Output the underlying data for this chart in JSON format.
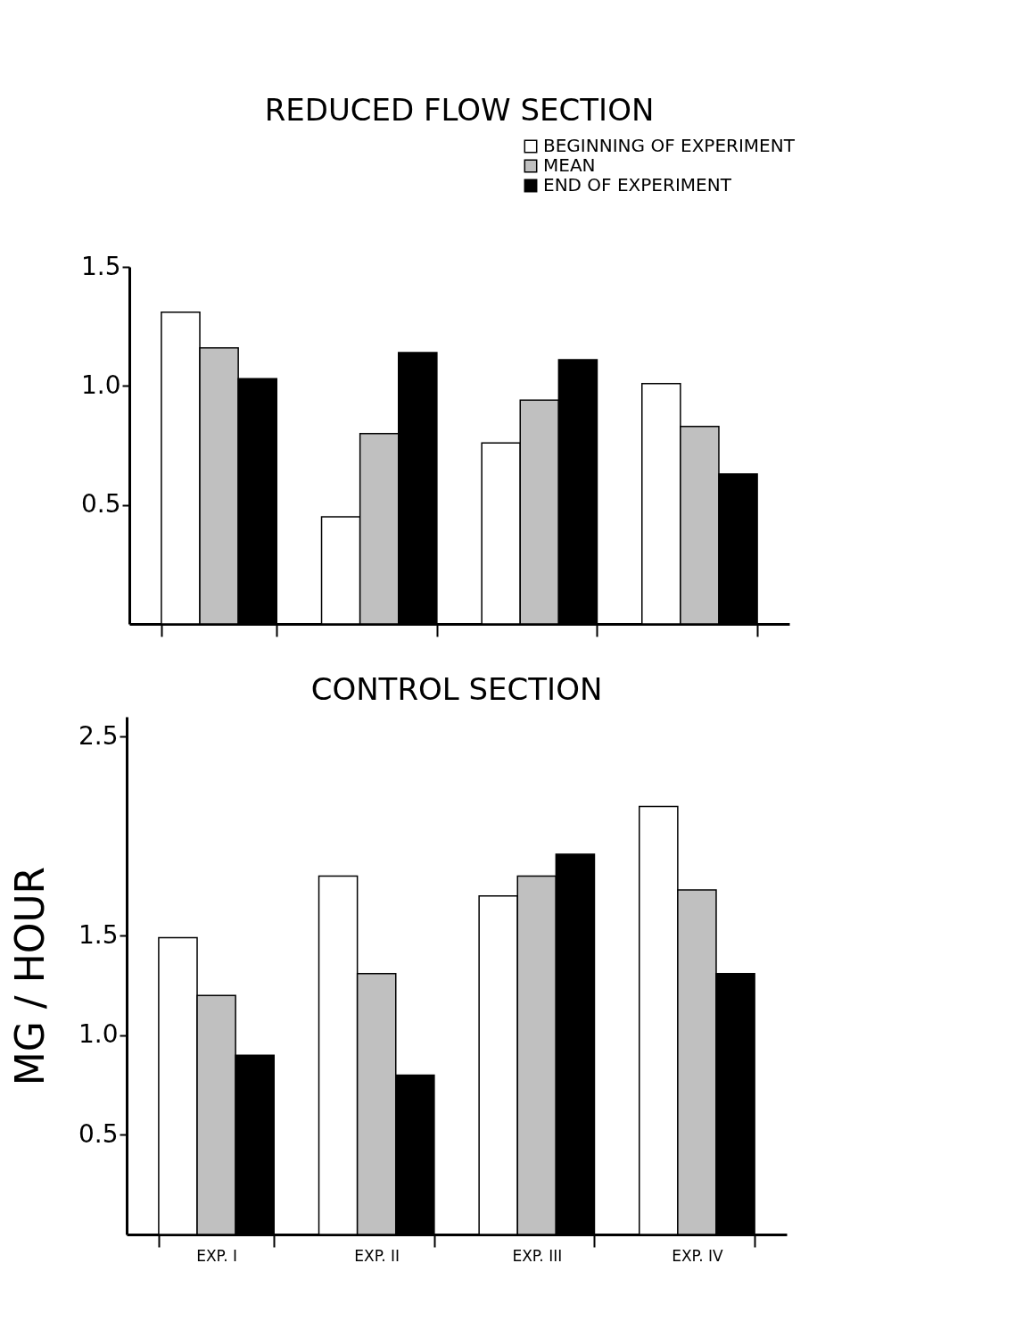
{
  "chart_data": [
    {
      "type": "bar",
      "title": "REDUCED FLOW SECTION",
      "categories": [
        null,
        null,
        null,
        null
      ],
      "series": [
        {
          "name": "BEGINNING OF EXPERIMENT",
          "color": "#ffffff",
          "values": [
            1.31,
            0.45,
            0.76,
            1.01
          ]
        },
        {
          "name": "MEAN",
          "color": "#c0c0c0",
          "values": [
            1.16,
            0.8,
            0.94,
            0.83
          ]
        },
        {
          "name": "END OF EXPERIMENT",
          "color": "#000000",
          "values": [
            1.03,
            1.14,
            1.11,
            0.63
          ]
        }
      ],
      "ylim": [
        0,
        1.5
      ],
      "yticks": [
        0.5,
        {
          "value": 1.0,
          "label": "1.0"
        },
        1.5
      ],
      "grid": false,
      "legend": "top right"
    },
    {
      "type": "bar",
      "title": "CONTROL SECTION",
      "ylabel": "MG / HOUR",
      "categories": [
        "EXP. I",
        "EXP. II",
        "EXP. III",
        "EXP. IV"
      ],
      "series": [
        {
          "color": "#ffffff",
          "values": [
            1.49,
            1.8,
            1.7,
            2.15
          ]
        },
        {
          "color": "#c0c0c0",
          "values": [
            1.2,
            1.31,
            1.8,
            1.73
          ]
        },
        {
          "color": "#000000",
          "values": [
            0.9,
            0.8,
            1.91,
            1.31
          ]
        }
      ],
      "ylim": [
        0,
        2.6
      ],
      "yticks": [
        0.5,
        {
          "value": 1.0,
          "label": "1.0"
        },
        1.5,
        2.5
      ],
      "grid": false
    }
  ]
}
